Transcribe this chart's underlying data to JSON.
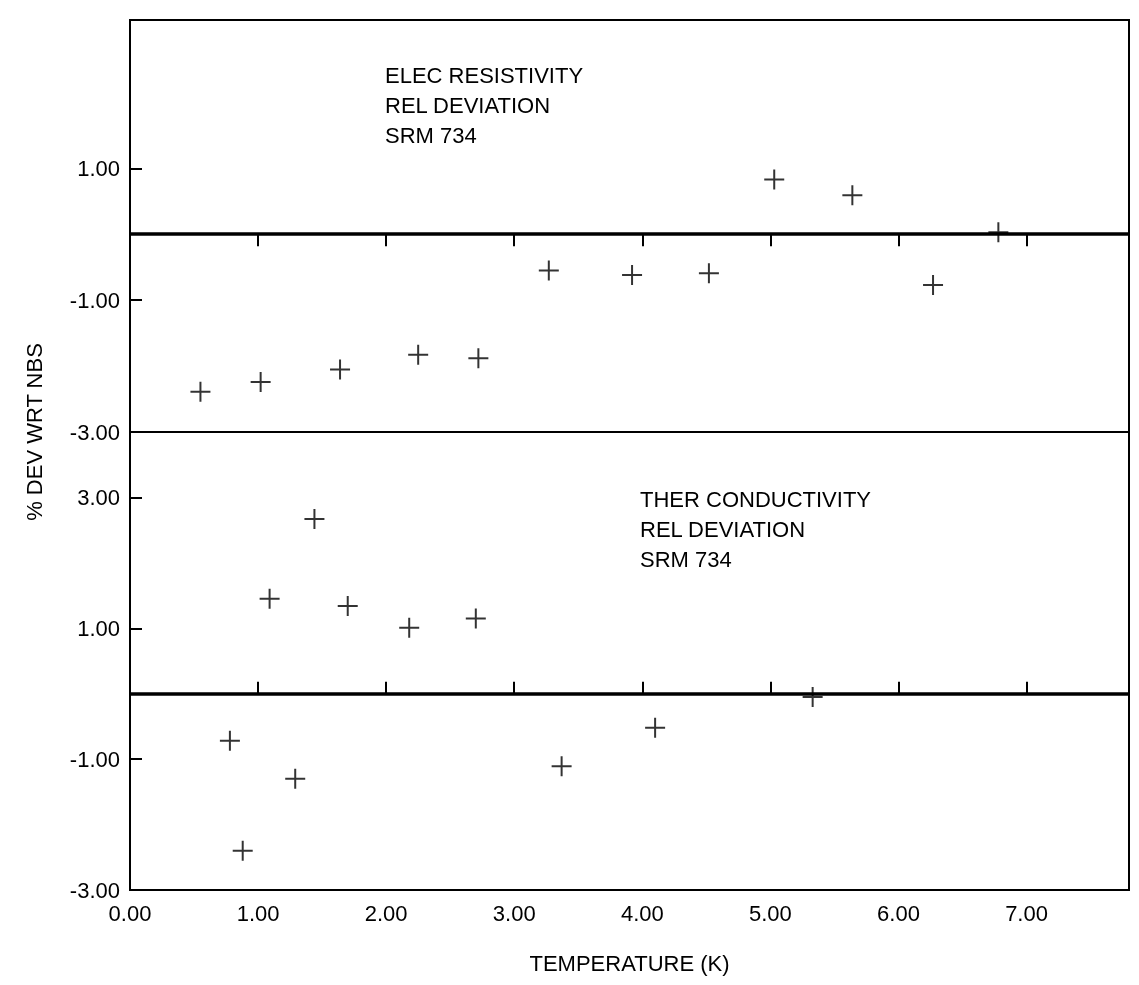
{
  "chart_data": [
    {
      "type": "scatter",
      "ylabel": "% DEV WRT NBS",
      "annotations": [
        "ELEC RESISTIVITY\nREL DEVIATION\nSRM 734"
      ],
      "x": [
        0.55,
        1.02,
        1.64,
        2.25,
        2.72,
        3.27,
        3.92,
        4.52,
        5.03,
        5.64,
        6.27,
        6.78
      ],
      "series": [
        {
          "color": "#000000",
          "values": [
            -2.39,
            -2.24,
            -2.05,
            -1.83,
            -1.88,
            -0.55,
            -0.62,
            -0.59,
            0.83,
            0.59,
            -0.77,
            0.03
          ]
        }
      ],
      "marker": "cross",
      "xlim": [
        0,
        7.8
      ],
      "xticks": [
        {
          "value": 0,
          "label": null
        },
        {
          "value": 1,
          "label": null
        },
        {
          "value": 2,
          "label": null
        },
        {
          "value": 3,
          "label": null
        },
        {
          "value": 4,
          "label": null
        },
        {
          "value": 5,
          "label": null
        },
        {
          "value": 6,
          "label": null
        },
        {
          "value": 7,
          "label": null
        }
      ],
      "ylim": [
        -3,
        3.25
      ],
      "yticks": [
        {
          "value": -3,
          "label": "-3.00"
        },
        {
          "value": -1,
          "label": "-1.00"
        },
        {
          "value": 1,
          "label": "1.00"
        }
      ],
      "ref_lines": [
        {
          "axis": "y",
          "value": 0
        }
      ],
      "tick_labels": "y"
    },
    {
      "type": "scatter",
      "xlabel": "TEMPERATURE (K)",
      "annotations": [
        "THER CONDUCTIVITY\nREL DEVIATION\nSRM 734"
      ],
      "x": [
        0.78,
        0.88,
        1.09,
        1.29,
        1.44,
        1.7,
        2.18,
        2.7,
        3.37,
        4.1,
        5.33
      ],
      "series": [
        {
          "color": "#000000",
          "values": [
            -0.72,
            -2.4,
            1.45,
            -1.3,
            2.67,
            1.34,
            1.01,
            1.15,
            -1.11,
            -0.52,
            -0.05
          ]
        }
      ],
      "marker": "cross",
      "xlim": [
        0,
        7.8
      ],
      "xticks": [
        {
          "value": 0,
          "label": "0.00"
        },
        {
          "value": 1,
          "label": "1.00"
        },
        {
          "value": 2,
          "label": "2.00"
        },
        {
          "value": 3,
          "label": "3.00"
        },
        {
          "value": 4,
          "label": "4.00"
        },
        {
          "value": 5,
          "label": "5.00"
        },
        {
          "value": 6,
          "label": "6.00"
        },
        {
          "value": 7,
          "label": "7.00"
        }
      ],
      "ylim": [
        -3,
        4
      ],
      "yticks": [
        {
          "value": -3,
          "label": "-3.00"
        },
        {
          "value": -1,
          "label": "-1.00"
        },
        {
          "value": 1,
          "label": "1.00"
        },
        {
          "value": 3,
          "label": "3.00"
        }
      ],
      "ref_lines": [
        {
          "axis": "y",
          "value": 0
        }
      ]
    }
  ]
}
